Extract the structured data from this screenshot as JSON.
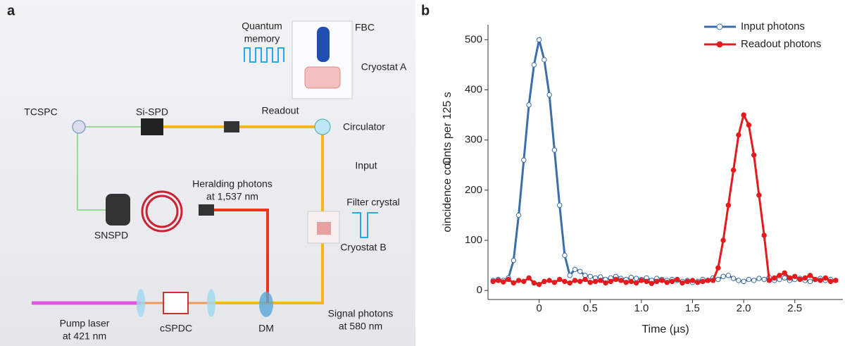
{
  "diagram": {
    "panel_label": "a",
    "labels": {
      "quantum_memory": [
        "Quantum",
        "memory"
      ],
      "fbc": "FBC",
      "cryostat_a": "Cryostat A",
      "tcspc": "TCSPC",
      "si_spd": "Si-SPD",
      "readout": "Readout",
      "circulator": "Circulator",
      "input": "Input",
      "heralding": [
        "Heralding photons",
        "at 1,537 nm"
      ],
      "filter_crystal": "Filter crystal",
      "snspd": "SNSPD",
      "cryostat_b": "Cryostat B",
      "pump": [
        "Pump laser",
        "at 421 nm"
      ],
      "cspdc": "cSPDC",
      "dm": "DM",
      "signal": [
        "Signal photons",
        "at 580 nm"
      ]
    }
  },
  "chart_data": {
    "type": "line",
    "panel_label": "b",
    "x_label": "Time (µs)",
    "y_label": "Coincidence counts per 125 s",
    "xlim": [
      -0.5,
      2.97
    ],
    "ylim": [
      -18,
      530
    ],
    "xticks": [
      0,
      0.5,
      {
        "value": 1,
        "label": "1.0"
      },
      {
        "value": 1.5,
        "label": "1.5"
      },
      {
        "value": 2,
        "label": "2.0"
      },
      2.5
    ],
    "yticks": [
      0,
      100,
      200,
      300,
      400,
      500
    ],
    "legend": "upper right",
    "x": [
      -0.45,
      -0.4,
      -0.35,
      -0.3,
      -0.25,
      -0.2,
      -0.15,
      -0.1,
      -0.05,
      0,
      0.05,
      0.1,
      0.15,
      0.2,
      0.25,
      0.3,
      0.35,
      0.4,
      0.45,
      0.5,
      0.55,
      0.6,
      0.65,
      0.7,
      0.75,
      0.8,
      0.85,
      0.9,
      0.95,
      1,
      1.05,
      1.1,
      1.15,
      1.2,
      1.25,
      1.3,
      1.35,
      1.4,
      1.45,
      1.5,
      1.55,
      1.6,
      1.65,
      1.7,
      1.75,
      1.8,
      1.85,
      1.9,
      1.95,
      2,
      2.05,
      2.1,
      2.15,
      2.2,
      2.25,
      2.3,
      2.35,
      2.4,
      2.45,
      2.5,
      2.55,
      2.6,
      2.65,
      2.7,
      2.75,
      2.8,
      2.85,
      2.9
    ],
    "series": [
      {
        "name": "Input photons",
        "color": "#3b6ea8",
        "marker": "open",
        "values": [
          20,
          22,
          20,
          25,
          60,
          150,
          260,
          370,
          450,
          500,
          460,
          390,
          280,
          170,
          70,
          30,
          42,
          38,
          30,
          28,
          25,
          27,
          22,
          25,
          28,
          24,
          22,
          26,
          24,
          22,
          25,
          20,
          24,
          22,
          20,
          22,
          20,
          18,
          20,
          16,
          18,
          22,
          20,
          25,
          22,
          28,
          30,
          24,
          20,
          18,
          22,
          20,
          24,
          22,
          26,
          20,
          22,
          25,
          20,
          22,
          24,
          20,
          18,
          22,
          24,
          20,
          22,
          20
        ]
      },
      {
        "name": "Readout photons",
        "color": "#e41a1c",
        "marker": "filled",
        "values": [
          18,
          20,
          17,
          22,
          15,
          20,
          18,
          25,
          15,
          12,
          18,
          20,
          16,
          22,
          18,
          15,
          20,
          18,
          22,
          16,
          18,
          20,
          15,
          18,
          22,
          20,
          16,
          18,
          15,
          20,
          18,
          14,
          18,
          20,
          16,
          18,
          22,
          15,
          18,
          20,
          16,
          18,
          20,
          20,
          45,
          100,
          170,
          240,
          310,
          350,
          330,
          270,
          190,
          110,
          20,
          25,
          30,
          35,
          25,
          28,
          22,
          25,
          30,
          22,
          20,
          25,
          18,
          20
        ]
      }
    ]
  }
}
